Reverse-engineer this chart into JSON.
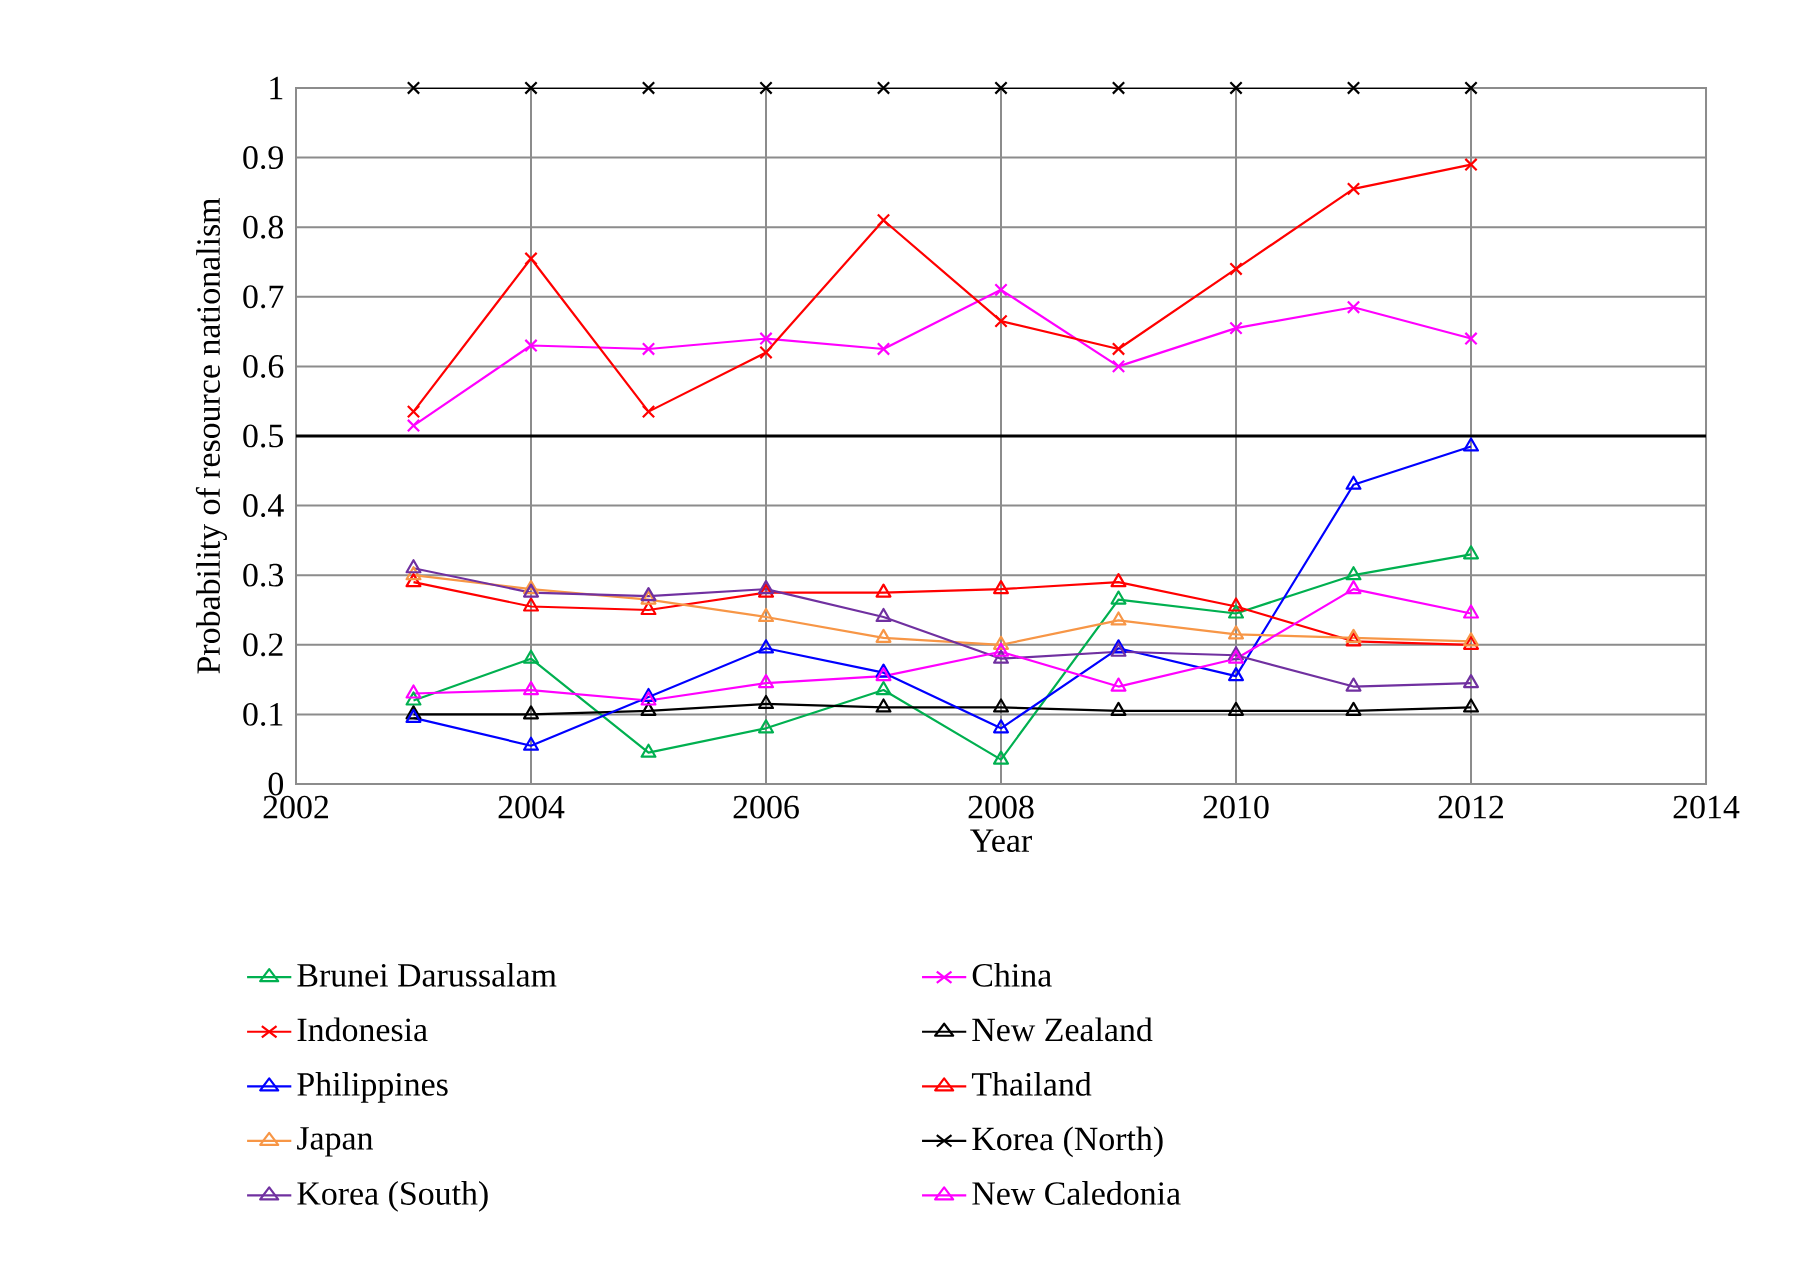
{
  "chart_data": {
    "type": "line",
    "xlabel": "Year",
    "ylabel": "Probability of resource nationalism",
    "x": [
      2003,
      2004,
      2005,
      2006,
      2007,
      2008,
      2009,
      2010,
      2011,
      2012
    ],
    "xlim": [
      2002,
      2014
    ],
    "xticks": [
      2002,
      2004,
      2006,
      2008,
      2010,
      2012,
      2014
    ],
    "ylim": [
      0,
      1
    ],
    "yticks": [
      0,
      0.1,
      0.2,
      0.3,
      0.4,
      0.5,
      0.6,
      0.7,
      0.8,
      0.9,
      1
    ],
    "grid": true,
    "legend": "bottom",
    "ref_lines": [
      {
        "axis": "y",
        "value": 0.5,
        "color": "#000000"
      }
    ],
    "series": [
      {
        "name": "Brunei Darussalam",
        "color": "#00b050",
        "marker": "triangle",
        "values": [
          0.12,
          0.18,
          0.045,
          0.08,
          0.135,
          0.035,
          0.265,
          0.245,
          0.3,
          0.33
        ]
      },
      {
        "name": "China",
        "color": "#ff00ff",
        "marker": "cross",
        "values": [
          0.515,
          0.63,
          0.625,
          0.64,
          0.625,
          0.71,
          0.6,
          0.655,
          0.685,
          0.64
        ]
      },
      {
        "name": "Indonesia",
        "color": "#ff0000",
        "marker": "cross",
        "values": [
          0.535,
          0.755,
          0.535,
          0.62,
          0.81,
          0.665,
          0.625,
          0.74,
          0.855,
          0.89
        ]
      },
      {
        "name": "New Zealand",
        "color": "#000000",
        "marker": "triangle",
        "values": [
          0.1,
          0.1,
          0.105,
          0.115,
          0.11,
          0.11,
          0.105,
          0.105,
          0.105,
          0.11
        ]
      },
      {
        "name": "Philippines",
        "color": "#0000ff",
        "marker": "triangle",
        "values": [
          0.095,
          0.055,
          0.125,
          0.195,
          0.16,
          0.08,
          0.195,
          0.155,
          0.43,
          0.485
        ]
      },
      {
        "name": "Thailand",
        "color": "#ff0000",
        "marker": "triangle",
        "values": [
          0.29,
          0.255,
          0.25,
          0.275,
          0.275,
          0.28,
          0.29,
          0.255,
          0.205,
          0.2
        ]
      },
      {
        "name": "Japan",
        "color": "#f79646",
        "marker": "triangle",
        "values": [
          0.3,
          0.28,
          0.265,
          0.24,
          0.21,
          0.2,
          0.235,
          0.215,
          0.21,
          0.205
        ]
      },
      {
        "name": "Korea (North)",
        "color": "#000000",
        "marker": "cross",
        "values": [
          1,
          1,
          1,
          1,
          1,
          1,
          1,
          1,
          1,
          1
        ]
      },
      {
        "name": "Korea (South)",
        "color": "#7030a0",
        "marker": "triangle",
        "values": [
          0.31,
          0.275,
          0.27,
          0.28,
          0.24,
          0.18,
          0.19,
          0.185,
          0.14,
          0.145
        ]
      },
      {
        "name": "New Caledonia",
        "color": "#ff00ff",
        "marker": "triangle",
        "values": [
          0.13,
          0.135,
          0.12,
          0.145,
          0.155,
          0.19,
          0.14,
          0.18,
          0.28,
          0.245
        ]
      }
    ]
  }
}
